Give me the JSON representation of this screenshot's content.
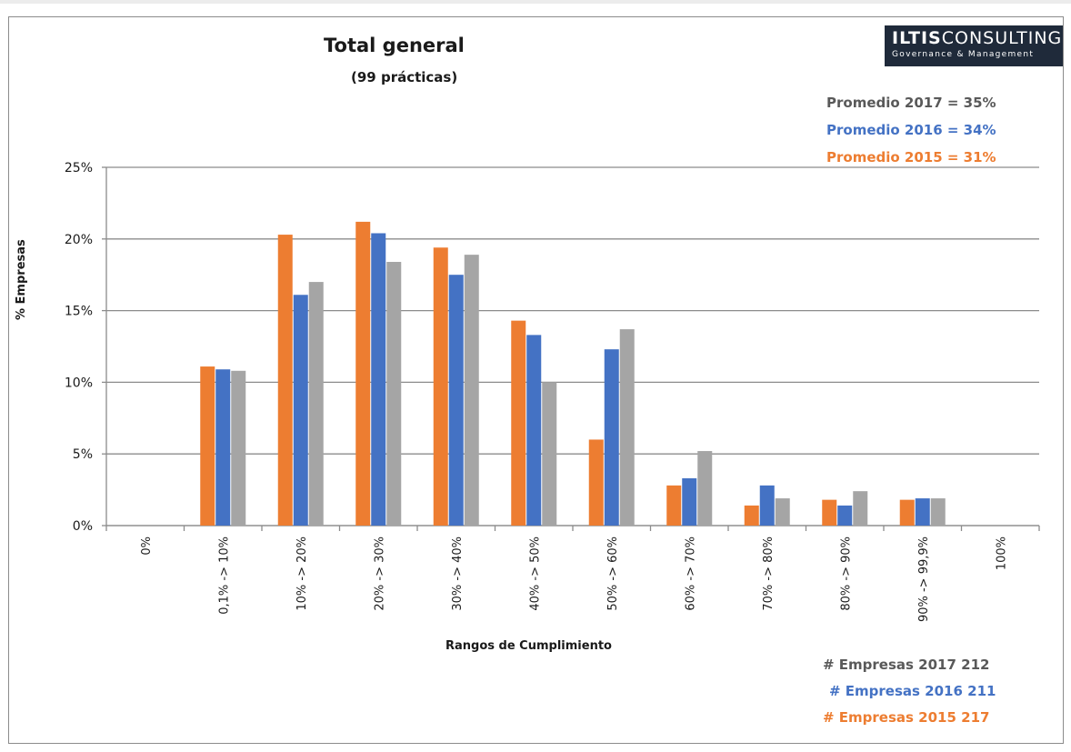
{
  "header": {
    "title": "Total general",
    "subtitle": "(99 prácticas)"
  },
  "logo": {
    "name_bold": "ILTIS",
    "name_rest": "CONSULTING",
    "tagline": "Governance & Management"
  },
  "averages": {
    "y2017": "Promedio 2017 = 35%",
    "y2016": "Promedio 2016 = 34%",
    "y2015": "Promedio 2015 = 31%"
  },
  "company_counts": {
    "y2017": "# Empresas  2017  212",
    "y2016": "# Empresas 2016  211",
    "y2015": "# Empresas  2015  217"
  },
  "colors": {
    "s2015": "#ed7d31",
    "s2016": "#4472c4",
    "s2017": "#a5a5a5",
    "grid": "#8c8c8c",
    "axis_text": "#1a1a1a"
  },
  "chart_data": {
    "type": "bar",
    "title": "Total general",
    "subtitle": "(99 prácticas)",
    "xlabel": "Rangos de Cumplimiento",
    "ylabel": "% Empresas",
    "ylim": [
      0,
      25
    ],
    "yticks": [
      "0%",
      "5%",
      "10%",
      "15%",
      "20%",
      "25%"
    ],
    "grid": true,
    "categories": [
      "0%",
      "0,1% -> 10%",
      "10% -> 20%",
      "20% -> 30%",
      "30% -> 40%",
      "40% -> 50%",
      "50% -> 60%",
      "60% -> 70%",
      "70% -> 80%",
      "80% -> 90%",
      "90% -> 99,9%",
      "100%"
    ],
    "series": [
      {
        "name": "2015",
        "values": [
          0,
          11.1,
          20.3,
          21.2,
          19.4,
          14.3,
          6.0,
          2.8,
          1.4,
          1.8,
          1.8,
          0
        ]
      },
      {
        "name": "2016",
        "values": [
          0,
          10.9,
          16.1,
          20.4,
          17.5,
          13.3,
          12.3,
          3.3,
          2.8,
          1.4,
          1.9,
          0
        ]
      },
      {
        "name": "2017",
        "values": [
          0,
          10.8,
          17.0,
          18.4,
          18.9,
          10.0,
          13.7,
          5.2,
          1.9,
          2.4,
          1.9,
          0
        ]
      }
    ]
  }
}
